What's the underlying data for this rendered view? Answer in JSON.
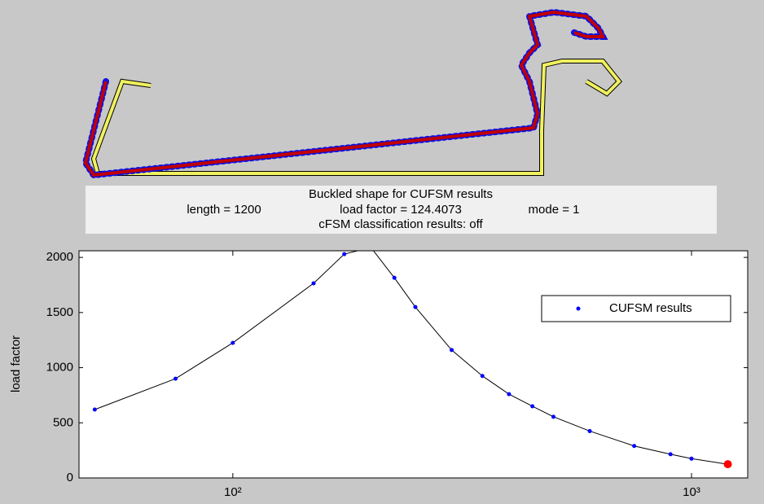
{
  "info_box": {
    "title": "Buckled shape for CUFSM results",
    "length": "length = 1200",
    "load_factor": "load factor = 124.4073",
    "mode": "mode = 1",
    "classification": "cFSM classification results: off"
  },
  "chart_data": {
    "type": "line",
    "ylabel": "load factor",
    "xscale": "log",
    "x": [
      50,
      75,
      100,
      150,
      175,
      200,
      225,
      250,
      300,
      350,
      400,
      450,
      500,
      600,
      750,
      900,
      1000,
      1200
    ],
    "series": [
      {
        "name": "CUFSM results",
        "color": "#0000ff",
        "line_color": "#000000",
        "values": [
          620,
          900,
          1225,
          1765,
          2030,
          2090,
          1815,
          1550,
          1160,
          925,
          760,
          650,
          555,
          425,
          290,
          215,
          175,
          124.4073
        ]
      }
    ],
    "highlight_index": 17,
    "highlight_color": "#ff0000",
    "xlim": [
      46.2,
      1326
    ],
    "xticks": [
      {
        "value": 100,
        "label": "10²"
      },
      {
        "value": 1000,
        "label": "10³"
      }
    ],
    "ylim": [
      0,
      2060
    ],
    "yticks": [
      0,
      500,
      1000,
      1500,
      2000
    ],
    "legend": "upper right",
    "grid": false
  }
}
